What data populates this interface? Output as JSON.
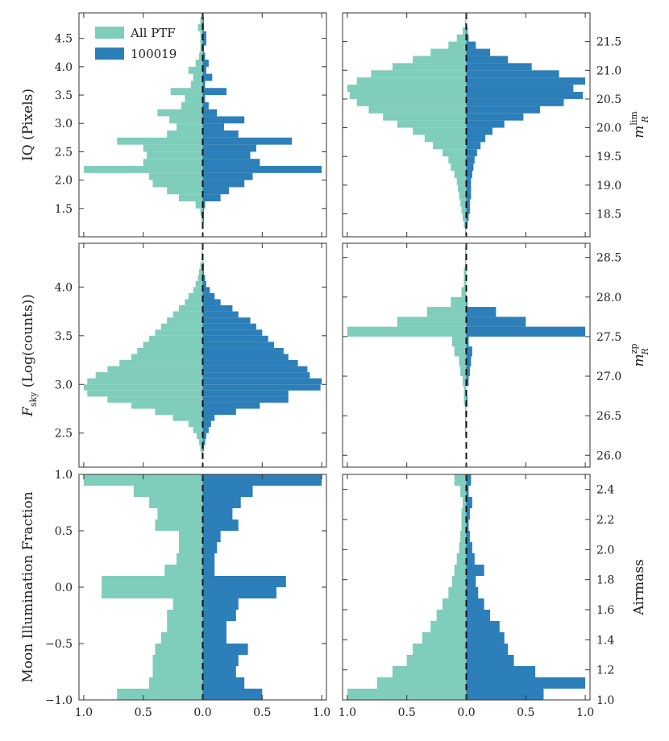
{
  "colors": {
    "all_ptf": "#7fcdbb",
    "field": "#2c7fb8",
    "frame": "#333333",
    "median": "#111111"
  },
  "legend": {
    "entries": [
      {
        "label": "All PTF",
        "color": "#7fcdbb"
      },
      {
        "label": "100019",
        "color": "#2c7fb8"
      }
    ]
  },
  "shared_x": {
    "ticks": [
      -1,
      -0.5,
      0,
      0.5,
      1
    ],
    "tick_labels": [
      "1.0",
      "0.5",
      "0.0",
      "0.5",
      "1.0"
    ],
    "xlim": [
      -1.04,
      1.04
    ]
  },
  "chart_data": [
    {
      "type": "bar",
      "id": "iq",
      "side_axis": "left",
      "ylabel": "IQ (Pixels)",
      "ylim": [
        1.0,
        4.95
      ],
      "yticks": [
        1.5,
        2.0,
        2.5,
        3.0,
        3.5,
        4.0,
        4.5
      ],
      "ytick_labels": [
        "1.5",
        "2.0",
        "2.5",
        "3.0",
        "3.5",
        "4.0",
        "4.5"
      ],
      "bin_width": 0.125,
      "bin_starts": [
        1.25,
        1.375,
        1.5,
        1.625,
        1.75,
        1.875,
        2.0,
        2.125,
        2.25,
        2.375,
        2.5,
        2.625,
        2.75,
        2.875,
        3.0,
        3.125,
        3.25,
        3.375,
        3.5,
        3.625,
        3.75,
        3.875,
        4.0,
        4.125,
        4.25,
        4.375,
        4.5,
        4.625,
        4.75,
        4.875
      ],
      "series": [
        {
          "name": "All PTF",
          "values": [
            0.01,
            0.02,
            0.06,
            0.2,
            0.3,
            0.42,
            0.45,
            1.0,
            0.5,
            0.47,
            0.5,
            0.72,
            0.3,
            0.22,
            0.28,
            0.38,
            0.18,
            0.15,
            0.27,
            0.1,
            0.08,
            0.12,
            0.06,
            0.03,
            0.02,
            0.02,
            0.02,
            0.04,
            0.02,
            0.01
          ]
        },
        {
          "name": "100019",
          "values": [
            0.01,
            0.01,
            0.02,
            0.15,
            0.22,
            0.35,
            0.42,
            1.0,
            0.48,
            0.4,
            0.45,
            0.75,
            0.3,
            0.18,
            0.35,
            0.12,
            0.05,
            0.02,
            0.2,
            0.02,
            0.08,
            0.03,
            0.05,
            0.02,
            0.01,
            0.03,
            0.03,
            0.01,
            0.01,
            0.0
          ]
        }
      ]
    },
    {
      "type": "bar",
      "id": "mlim",
      "side_axis": "right",
      "ylabel": "m_R^lim",
      "ylabel_main": "m",
      "ylabel_sub": "R",
      "ylabel_sup": "lim",
      "ylim": [
        18.1,
        22.0
      ],
      "yticks": [
        18.5,
        19.0,
        19.5,
        20.0,
        20.5,
        21.0,
        21.5
      ],
      "ytick_labels": [
        "18.5",
        "19.0",
        "19.5",
        "20.0",
        "20.5",
        "21.0",
        "21.5"
      ],
      "bin_width": 0.125,
      "bin_starts": [
        18.125,
        18.25,
        18.375,
        18.5,
        18.625,
        18.75,
        18.875,
        19.0,
        19.125,
        19.25,
        19.375,
        19.5,
        19.625,
        19.75,
        19.875,
        20.0,
        20.125,
        20.25,
        20.375,
        20.5,
        20.625,
        20.75,
        20.875,
        21.0,
        21.125,
        21.25,
        21.375,
        21.5,
        21.625,
        21.75,
        21.875
      ],
      "series": [
        {
          "name": "All PTF",
          "values": [
            0.01,
            0.02,
            0.03,
            0.04,
            0.05,
            0.06,
            0.07,
            0.08,
            0.1,
            0.13,
            0.15,
            0.2,
            0.28,
            0.35,
            0.45,
            0.58,
            0.7,
            0.82,
            0.92,
            0.98,
            1.0,
            0.92,
            0.8,
            0.62,
            0.45,
            0.3,
            0.15,
            0.08,
            0.03,
            0.01,
            0.0
          ]
        },
        {
          "name": "100019",
          "values": [
            0.0,
            0.01,
            0.02,
            0.03,
            0.03,
            0.04,
            0.04,
            0.04,
            0.05,
            0.06,
            0.07,
            0.09,
            0.12,
            0.16,
            0.22,
            0.32,
            0.48,
            0.62,
            0.82,
            0.98,
            0.9,
            1.0,
            0.78,
            0.55,
            0.35,
            0.2,
            0.08,
            0.02,
            0.01,
            0.0,
            0.0
          ]
        }
      ]
    },
    {
      "type": "bar",
      "id": "fsky",
      "side_axis": "left",
      "ylabel": "F_sky (Log(counts))",
      "ylabel_main": "F",
      "ylabel_sub": "sky",
      "ylabel_rest": " (Log(counts))",
      "ylim": [
        2.15,
        4.45
      ],
      "yticks": [
        2.5,
        3.0,
        3.5,
        4.0
      ],
      "ytick_labels": [
        "2.5",
        "3.0",
        "3.5",
        "4.0"
      ],
      "bin_width": 0.0625,
      "bin_starts": [
        2.25,
        2.3125,
        2.375,
        2.4375,
        2.5,
        2.5625,
        2.625,
        2.6875,
        2.75,
        2.8125,
        2.875,
        2.9375,
        3.0,
        3.0625,
        3.125,
        3.1875,
        3.25,
        3.3125,
        3.375,
        3.4375,
        3.5,
        3.5625,
        3.625,
        3.6875,
        3.75,
        3.8125,
        3.875,
        3.9375,
        4.0,
        4.0625,
        4.125,
        4.1875,
        4.25,
        4.3125
      ],
      "series": [
        {
          "name": "All PTF",
          "values": [
            0.01,
            0.02,
            0.03,
            0.05,
            0.08,
            0.12,
            0.25,
            0.4,
            0.6,
            0.8,
            0.97,
            1.0,
            0.97,
            0.9,
            0.8,
            0.7,
            0.6,
            0.55,
            0.5,
            0.45,
            0.4,
            0.35,
            0.3,
            0.25,
            0.2,
            0.15,
            0.12,
            0.08,
            0.06,
            0.04,
            0.03,
            0.02,
            0.01,
            0.01
          ]
        },
        {
          "name": "100019",
          "values": [
            0.0,
            0.01,
            0.02,
            0.03,
            0.05,
            0.07,
            0.1,
            0.28,
            0.48,
            0.72,
            0.72,
            0.99,
            1.0,
            0.9,
            0.88,
            0.8,
            0.72,
            0.68,
            0.6,
            0.55,
            0.5,
            0.45,
            0.4,
            0.3,
            0.25,
            0.15,
            0.1,
            0.06,
            0.03,
            0.02,
            0.01,
            0.01,
            0.0,
            0.0
          ]
        }
      ]
    },
    {
      "type": "bar",
      "id": "mzp",
      "side_axis": "right",
      "ylabel": "m_R^zp",
      "ylabel_main": "m",
      "ylabel_sub": "R",
      "ylabel_sup": "zp",
      "ylim": [
        25.85,
        28.68
      ],
      "yticks": [
        26.0,
        26.5,
        27.0,
        27.5,
        28.0,
        28.5
      ],
      "ytick_labels": [
        "26.0",
        "26.5",
        "27.0",
        "27.5",
        "28.0",
        "28.5"
      ],
      "bin_width": 0.125,
      "bin_starts": [
        26.25,
        26.375,
        26.5,
        26.625,
        26.75,
        26.875,
        27.0,
        27.125,
        27.25,
        27.375,
        27.5,
        27.625,
        27.75,
        27.875,
        28.0,
        28.125,
        28.25,
        28.375,
        28.5
      ],
      "series": [
        {
          "name": "All PTF",
          "values": [
            0.01,
            0.01,
            0.01,
            0.02,
            0.02,
            0.03,
            0.05,
            0.06,
            0.1,
            0.12,
            1.0,
            0.58,
            0.33,
            0.13,
            0.04,
            0.02,
            0.02,
            0.01,
            0.01
          ]
        },
        {
          "name": "100019",
          "values": [
            0.0,
            0.0,
            0.0,
            0.01,
            0.0,
            0.02,
            0.03,
            0.04,
            0.05,
            0.02,
            1.0,
            0.5,
            0.25,
            0.01,
            0.0,
            0.0,
            0.0,
            0.0,
            0.0
          ]
        }
      ]
    },
    {
      "type": "bar",
      "id": "moon",
      "side_axis": "left",
      "ylabel": "Moon Illumination Fraction",
      "ylim": [
        -1.0,
        1.0
      ],
      "yticks": [
        -1.0,
        -0.5,
        0.0,
        0.5,
        1.0
      ],
      "ytick_labels": [
        "−1.0",
        "−0.5",
        "0.0",
        "0.5",
        "1.0"
      ],
      "bin_width": 0.1,
      "bin_starts": [
        -1.0,
        -0.9,
        -0.8,
        -0.7,
        -0.6,
        -0.5,
        -0.4,
        -0.3,
        -0.2,
        -0.1,
        0.0,
        0.1,
        0.2,
        0.3,
        0.4,
        0.5,
        0.6,
        0.7,
        0.8,
        0.9
      ],
      "series": [
        {
          "name": "All PTF",
          "values": [
            0.72,
            0.45,
            0.42,
            0.42,
            0.4,
            0.35,
            0.3,
            0.3,
            0.25,
            0.85,
            0.85,
            0.32,
            0.22,
            0.2,
            0.2,
            0.4,
            0.38,
            0.45,
            0.58,
            1.0
          ]
        },
        {
          "name": "100019",
          "values": [
            0.5,
            0.35,
            0.28,
            0.3,
            0.38,
            0.2,
            0.2,
            0.28,
            0.3,
            0.62,
            0.7,
            0.1,
            0.1,
            0.12,
            0.15,
            0.3,
            0.25,
            0.32,
            0.42,
            1.0
          ]
        }
      ]
    },
    {
      "type": "bar",
      "id": "airmass",
      "side_axis": "right",
      "ylabel": "Airmass",
      "ylim": [
        1.0,
        2.5
      ],
      "yticks": [
        1.0,
        1.2,
        1.4,
        1.6,
        1.8,
        2.0,
        2.2,
        2.4
      ],
      "ytick_labels": [
        "1.0",
        "1.2",
        "1.4",
        "1.6",
        "1.8",
        "2.0",
        "2.2",
        "2.4"
      ],
      "bin_width": 0.075,
      "bin_starts": [
        1.0,
        1.075,
        1.15,
        1.225,
        1.3,
        1.375,
        1.45,
        1.525,
        1.6,
        1.675,
        1.75,
        1.825,
        1.9,
        1.975,
        2.05,
        2.125,
        2.2,
        2.275,
        2.35,
        2.425
      ],
      "series": [
        {
          "name": "All PTF",
          "values": [
            1.0,
            0.75,
            0.62,
            0.5,
            0.45,
            0.37,
            0.3,
            0.25,
            0.2,
            0.15,
            0.12,
            0.1,
            0.08,
            0.06,
            0.05,
            0.04,
            0.04,
            0.03,
            0.05,
            0.1
          ]
        },
        {
          "name": "100019",
          "values": [
            0.65,
            1.0,
            0.58,
            0.4,
            0.35,
            0.32,
            0.28,
            0.2,
            0.15,
            0.1,
            0.08,
            0.15,
            0.07,
            0.05,
            0.03,
            0.02,
            0.03,
            0.05,
            0.02,
            0.04
          ]
        }
      ]
    }
  ]
}
